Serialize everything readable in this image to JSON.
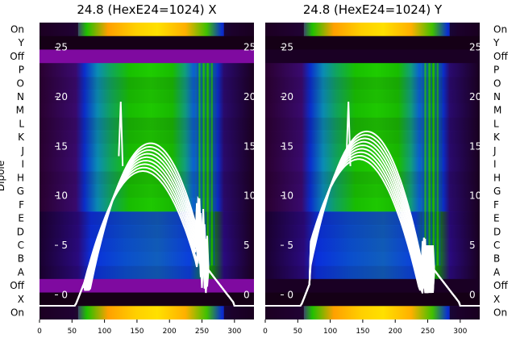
{
  "chart_data": [
    {
      "type": "heatmap",
      "title": "24.8 (HexE24=1024) X",
      "ylabel": "Dipole",
      "row_labels_top_to_bottom": [
        "On",
        "Y",
        "Off",
        "P",
        "O",
        "N",
        "M",
        "L",
        "K",
        "J",
        "I",
        "H",
        "G",
        "F",
        "E",
        "D",
        "C",
        "B",
        "A",
        "Off",
        "X",
        "On"
      ],
      "x_ticks": [
        "0",
        "50",
        "100",
        "150",
        "200",
        "250",
        "300"
      ],
      "xlim": [
        0,
        330
      ],
      "overlay_y_ticks": [
        "25",
        "20",
        "15",
        "10",
        "5",
        "0"
      ],
      "overlay_ylim": [
        -2,
        27
      ]
    },
    {
      "type": "heatmap",
      "title": "24.8 (HexE24=1024) Y",
      "row_labels_top_to_bottom": [
        "On",
        "Y",
        "Off",
        "P",
        "O",
        "N",
        "M",
        "L",
        "K",
        "J",
        "I",
        "H",
        "G",
        "F",
        "E",
        "D",
        "C",
        "B",
        "A",
        "Off",
        "X",
        "On"
      ],
      "x_ticks": [
        "0",
        "50",
        "100",
        "150",
        "200",
        "250",
        "300"
      ],
      "xlim": [
        0,
        330
      ],
      "overlay_y_ticks": [
        "25",
        "20",
        "15",
        "10",
        "5",
        "0"
      ],
      "overlay_ylim": [
        -2,
        27
      ]
    }
  ],
  "colors": {
    "background_dark": "#150016",
    "purple_band": "#7f0aa0",
    "green": "#18c400",
    "blue": "#0a2fd0",
    "cyan": "#0a8fb8",
    "orange": "#ffa000",
    "yellow": "#ffe000",
    "trace": "#ffffff"
  }
}
